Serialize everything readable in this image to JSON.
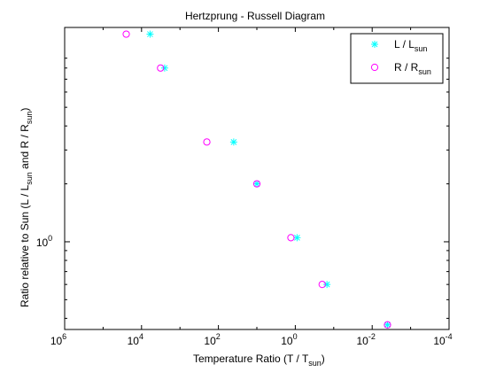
{
  "chart_data": {
    "type": "scatter",
    "title": "Hertzprung - Russell Diagram",
    "xlabel": {
      "main": "Temperature Ratio (T / T",
      "sub": "sun",
      "tail": ")"
    },
    "ylabel": {
      "p1": "Ratio relative to Sun (L / L",
      "s1": "sun",
      "p2": " and R / R",
      "s2": "sun",
      "p3": ")"
    },
    "x_scale": "log",
    "x_reversed": true,
    "x_ticks": [
      {
        "value": 1000000,
        "base": "10",
        "exp": "6"
      },
      {
        "value": 10000,
        "base": "10",
        "exp": "4"
      },
      {
        "value": 100,
        "base": "10",
        "exp": "2"
      },
      {
        "value": 1,
        "base": "10",
        "exp": "0"
      },
      {
        "value": 0.01,
        "base": "10",
        "exp": "-2"
      },
      {
        "value": 0.0001,
        "base": "10",
        "exp": "-4"
      }
    ],
    "xlim": [
      1000000,
      0.0001
    ],
    "y_scale": "log",
    "y_ticks": [
      {
        "value": 1,
        "base": "10",
        "exp": "0"
      }
    ],
    "ylim": [
      0.35,
      13
    ],
    "grid": false,
    "legend_position": "top-right",
    "series": [
      {
        "name": {
          "main": "L / L",
          "sub": "sun"
        },
        "marker": "asterisk",
        "color": "#00ffff",
        "x": [
          6000,
          2500,
          40,
          10,
          0.9,
          0.15,
          0.004
        ],
        "y": [
          12,
          8,
          3.3,
          2.0,
          1.05,
          0.6,
          0.37
        ]
      },
      {
        "name": {
          "main": "R / R",
          "sub": "sun"
        },
        "marker": "circle",
        "color": "#ff00ff",
        "x": [
          25000,
          3200,
          200,
          10,
          1.3,
          0.2,
          0.004
        ],
        "y": [
          12,
          8,
          3.3,
          2.0,
          1.05,
          0.6,
          0.37
        ]
      }
    ]
  }
}
